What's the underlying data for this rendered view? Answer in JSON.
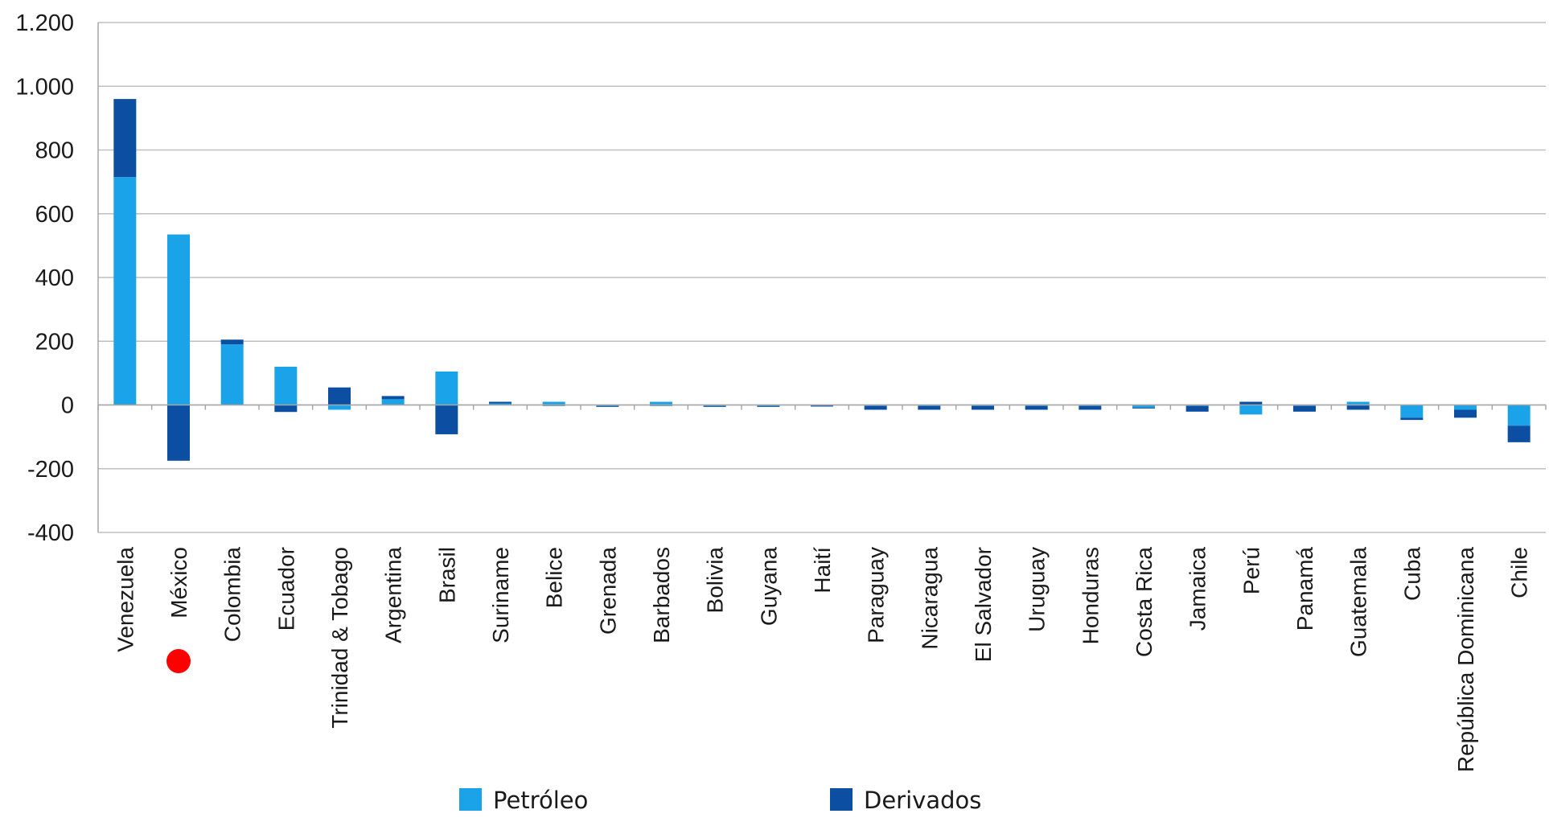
{
  "chart_data": {
    "type": "bar",
    "stacked": true,
    "title": "",
    "xlabel": "",
    "ylabel": "",
    "ylim": [
      -400,
      1200
    ],
    "yticks": [
      -400,
      -200,
      0,
      200,
      400,
      600,
      800,
      1000,
      1200
    ],
    "ytick_labels": [
      "-400",
      "-200",
      "0",
      "200",
      "400",
      "600",
      "800",
      "1.000",
      "1.200"
    ],
    "grid": true,
    "legend_position": "bottom",
    "categories": [
      "Venezuela",
      "México",
      "Colombia",
      "Ecuador",
      "Trinidad & Tobago",
      "Argentina",
      "Brasil",
      "Suriname",
      "Belice",
      "Grenada",
      "Barbados",
      "Bolivia",
      "Guyana",
      "Haití",
      "Paraguay",
      "Nicaragua",
      "El Salvador",
      "Uruguay",
      "Honduras",
      "Costa Rica",
      "Jamaica",
      "Perú",
      "Panamá",
      "Guatemala",
      "Cuba",
      "República Dominicana",
      "Chile"
    ],
    "series": [
      {
        "name": "Petróleo",
        "color": "#1aa3e8",
        "values": [
          715,
          535,
          190,
          120,
          -15,
          18,
          105,
          5,
          10,
          -3,
          10,
          -3,
          -3,
          -2,
          -3,
          -3,
          -3,
          -3,
          -3,
          -8,
          -3,
          -30,
          -3,
          10,
          -40,
          -15,
          -65
        ]
      },
      {
        "name": "Derivados",
        "color": "#0b4ea2",
        "values": [
          245,
          -175,
          15,
          -22,
          55,
          10,
          -92,
          5,
          -3,
          -3,
          -3,
          -3,
          -3,
          -3,
          -12,
          -12,
          -12,
          -12,
          -12,
          -3,
          -18,
          10,
          -18,
          -15,
          -7,
          -25,
          -52
        ]
      }
    ]
  },
  "annotations": {
    "highlight_marker": {
      "category": "México",
      "color": "#ff0000",
      "shape": "circle"
    }
  }
}
